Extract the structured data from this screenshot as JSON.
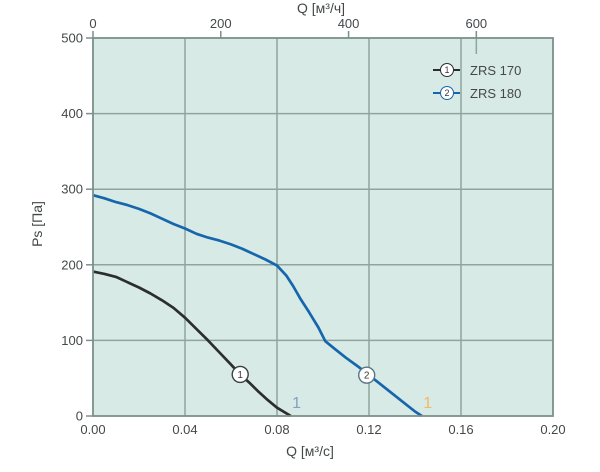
{
  "chart_data": {
    "type": "line",
    "title": "",
    "x_axis_bottom": {
      "label": "Q [м³/с]",
      "min": 0,
      "max": 0.2,
      "tick_labels": [
        "0.00",
        "0.04",
        "0.08",
        "0.12",
        "0.16",
        "0.20"
      ]
    },
    "x_axis_top": {
      "label": "Q [м³/ч]",
      "ticks": [
        0,
        200,
        400,
        600
      ],
      "scale_factor_to_bottom": 3600,
      "inner_tick_values": [
        600
      ]
    },
    "y_axis": {
      "label": "Ps [Па]",
      "min": 0,
      "max": 500,
      "ticks": [
        0,
        100,
        200,
        300,
        400,
        500
      ]
    },
    "grid": {
      "x_values": [
        0.04,
        0.08,
        0.12,
        0.16
      ],
      "y_values": [
        100,
        200,
        300,
        400
      ]
    },
    "series": [
      {
        "name": "ZRS 170",
        "color": "#2b2d2e",
        "marker": {
          "label": "1",
          "q": 0.064,
          "ps": 55,
          "ring_color": "#3a3f41"
        },
        "points": [
          [
            0,
            191
          ],
          [
            0.005,
            188
          ],
          [
            0.01,
            184
          ],
          [
            0.015,
            177
          ],
          [
            0.02,
            170
          ],
          [
            0.025,
            162
          ],
          [
            0.03,
            153
          ],
          [
            0.035,
            143
          ],
          [
            0.04,
            130
          ],
          [
            0.045,
            115
          ],
          [
            0.05,
            100
          ],
          [
            0.055,
            84
          ],
          [
            0.06,
            68
          ],
          [
            0.064,
            55
          ],
          [
            0.068,
            44
          ],
          [
            0.072,
            32
          ],
          [
            0.076,
            21
          ],
          [
            0.08,
            11
          ],
          [
            0.086,
            0
          ]
        ]
      },
      {
        "name": "ZRS 180",
        "color": "#1566ad",
        "marker": {
          "label": "2",
          "q": 0.119,
          "ps": 54,
          "ring_color": "#5a7586"
        },
        "points": [
          [
            0,
            292
          ],
          [
            0.005,
            288
          ],
          [
            0.01,
            283
          ],
          [
            0.015,
            279
          ],
          [
            0.02,
            274
          ],
          [
            0.025,
            268
          ],
          [
            0.03,
            261
          ],
          [
            0.035,
            254
          ],
          [
            0.04,
            248
          ],
          [
            0.045,
            241
          ],
          [
            0.05,
            236
          ],
          [
            0.055,
            232
          ],
          [
            0.06,
            227
          ],
          [
            0.065,
            221
          ],
          [
            0.07,
            214
          ],
          [
            0.075,
            207
          ],
          [
            0.08,
            199
          ],
          [
            0.084,
            186
          ],
          [
            0.087,
            172
          ],
          [
            0.09,
            156
          ],
          [
            0.094,
            137
          ],
          [
            0.098,
            117
          ],
          [
            0.101,
            99
          ],
          [
            0.105,
            89
          ],
          [
            0.11,
            77
          ],
          [
            0.115,
            66
          ],
          [
            0.12,
            54
          ],
          [
            0.125,
            42
          ],
          [
            0.13,
            30
          ],
          [
            0.135,
            18
          ],
          [
            0.14,
            6
          ],
          [
            0.143,
            0
          ]
        ]
      }
    ],
    "annotations": [
      {
        "text": "1",
        "q": 0.0885,
        "ps": 17,
        "color": "#82a0c4"
      },
      {
        "text": "1",
        "q": 0.1455,
        "ps": 17,
        "color": "#f1ba64"
      }
    ],
    "colors": {
      "plot_bg": "#d8eae5",
      "grid": "#90a49f",
      "frame": "#7c908b",
      "text": "#44484a"
    },
    "legend_position": "top-right",
    "grid_on": true
  }
}
